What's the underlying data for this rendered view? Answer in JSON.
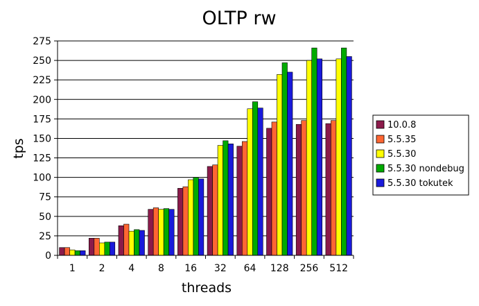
{
  "chart_data": {
    "type": "bar",
    "title": "OLTP rw",
    "xlabel": "threads",
    "ylabel": "tps",
    "categories": [
      "1",
      "2",
      "4",
      "8",
      "16",
      "32",
      "64",
      "128",
      "256",
      "512"
    ],
    "ylim": [
      0,
      275
    ],
    "yticks": [
      0,
      25,
      50,
      75,
      100,
      125,
      150,
      175,
      200,
      225,
      250,
      275
    ],
    "grid": true,
    "legend_position": "right",
    "series": [
      {
        "name": "10.0.8",
        "color": "#8b1a4a",
        "values": [
          10,
          22,
          38,
          59,
          86,
          114,
          140,
          163,
          168,
          169
        ]
      },
      {
        "name": "5.5.35",
        "color": "#ff6633",
        "values": [
          10,
          22,
          40,
          61,
          88,
          116,
          146,
          171,
          173,
          173
        ]
      },
      {
        "name": "5.5.30",
        "color": "#ffff00",
        "values": [
          7,
          16,
          31,
          59,
          97,
          141,
          188,
          232,
          250,
          252
        ]
      },
      {
        "name": "5.5.30 nondebug",
        "color": "#00aa00",
        "values": [
          6,
          17,
          33,
          60,
          100,
          147,
          197,
          247,
          266,
          266
        ]
      },
      {
        "name": "5.5.30 tokutek",
        "color": "#1a1adb",
        "values": [
          6,
          17,
          32,
          59,
          98,
          143,
          189,
          235,
          252,
          255
        ]
      }
    ]
  }
}
